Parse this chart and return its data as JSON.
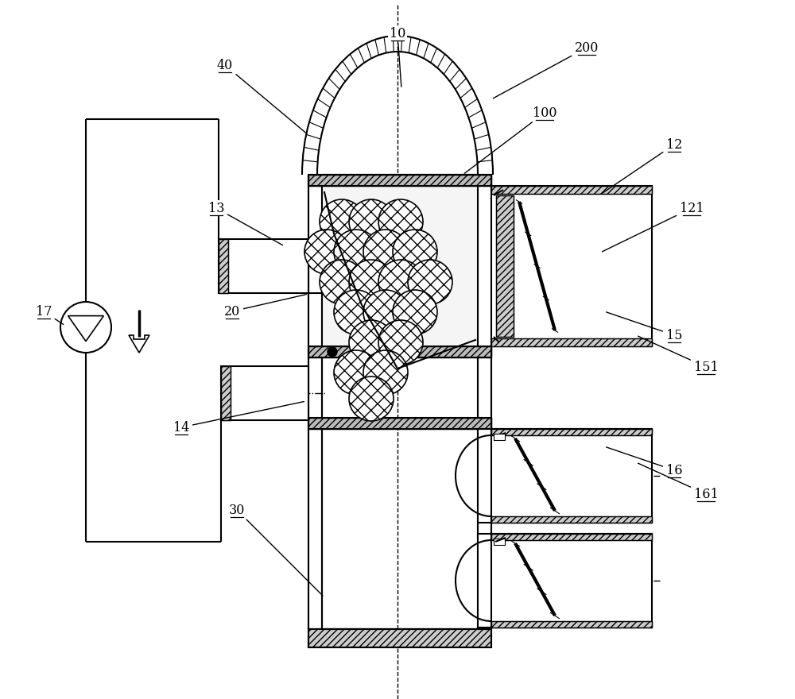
{
  "bg": "#ffffff",
  "lc": "#000000",
  "fig_w": 10.0,
  "fig_h": 8.8,
  "dpi": 100,
  "labels": [
    [
      "10",
      500,
      838,
      505,
      768
    ],
    [
      "40",
      283,
      798,
      388,
      710
    ],
    [
      "200",
      738,
      820,
      618,
      755
    ],
    [
      "100",
      685,
      738,
      582,
      660
    ],
    [
      "12",
      848,
      698,
      755,
      635
    ],
    [
      "121",
      870,
      618,
      755,
      562
    ],
    [
      "13",
      272,
      618,
      358,
      570
    ],
    [
      "20",
      292,
      488,
      388,
      510
    ],
    [
      "14",
      228,
      342,
      385,
      375
    ],
    [
      "30",
      298,
      238,
      408,
      128
    ],
    [
      "15",
      848,
      458,
      760,
      488
    ],
    [
      "151",
      888,
      418,
      800,
      458
    ],
    [
      "16",
      848,
      288,
      760,
      318
    ],
    [
      "161",
      888,
      258,
      800,
      298
    ],
    [
      "17",
      55,
      488,
      82,
      470
    ]
  ]
}
